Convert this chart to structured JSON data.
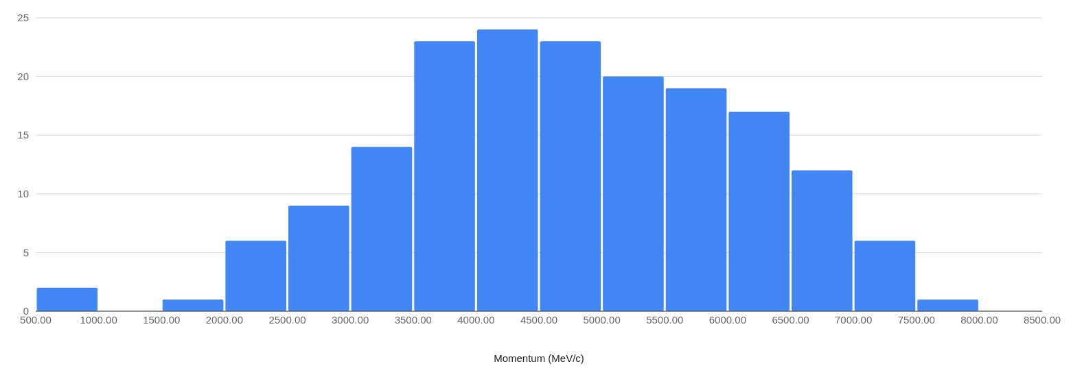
{
  "chart_data": {
    "type": "histogram",
    "xlabel": "Momentum (MeV/c)",
    "color": "#4285f4",
    "bins": [
      500,
      1000,
      1500,
      2000,
      2500,
      3000,
      3500,
      4000,
      4500,
      5000,
      5500,
      6000,
      6500,
      7000,
      7500,
      8000,
      8500
    ],
    "values": [
      2,
      0,
      1,
      6,
      9,
      14,
      23,
      24,
      23,
      20,
      19,
      17,
      12,
      6,
      1,
      0
    ],
    "xlim": [
      500,
      8500
    ],
    "xticks": [
      {
        "value": 500,
        "label": "500.00"
      },
      {
        "value": 1000,
        "label": "1000.00"
      },
      {
        "value": 1500,
        "label": "1500.00"
      },
      {
        "value": 2000,
        "label": "2000.00"
      },
      {
        "value": 2500,
        "label": "2500.00"
      },
      {
        "value": 3000,
        "label": "3000.00"
      },
      {
        "value": 3500,
        "label": "3500.00"
      },
      {
        "value": 4000,
        "label": "4000.00"
      },
      {
        "value": 4500,
        "label": "4500.00"
      },
      {
        "value": 5000,
        "label": "5000.00"
      },
      {
        "value": 5500,
        "label": "5500.00"
      },
      {
        "value": 6000,
        "label": "6000.00"
      },
      {
        "value": 6500,
        "label": "6500.00"
      },
      {
        "value": 7000,
        "label": "7000.00"
      },
      {
        "value": 7500,
        "label": "7500.00"
      },
      {
        "value": 8000,
        "label": "8000.00"
      },
      {
        "value": 8500,
        "label": "8500.00"
      }
    ],
    "ylim": [
      0,
      25
    ],
    "yticks": [
      0,
      5,
      10,
      15,
      20,
      25
    ],
    "grid": "y"
  }
}
